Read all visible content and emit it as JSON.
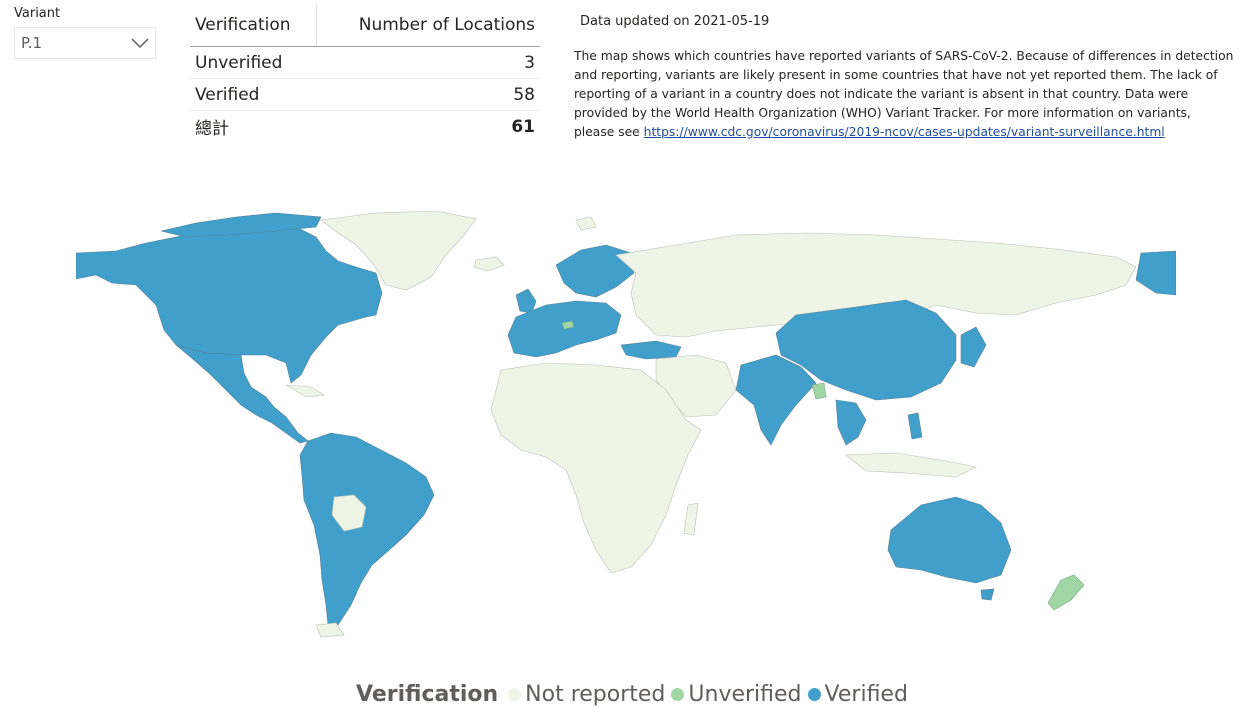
{
  "slicer": {
    "title": "Variant",
    "selected": "P.1"
  },
  "table": {
    "headers": [
      "Verification",
      "Number of Locations"
    ],
    "rows": [
      {
        "label": "Unverified",
        "value": "3"
      },
      {
        "label": "Verified",
        "value": "58"
      }
    ],
    "total": {
      "label": "總計",
      "value": "61"
    }
  },
  "info": {
    "updated": "Data updated on 2021-05-19",
    "body": "The map shows which countries have reported variants of SARS-CoV-2. Because of differences in detection and reporting, variants are likely present in some countries that have not yet reported them. The lack of reporting of a variant in a country does not indicate the variant is absent in that country. Data were provided by the World Health Organization (WHO) Variant Tracker. For more information on variants, please see",
    "link": "https://www.cdc.gov/coronavirus/2019-ncov/cases-updates/variant-surveillance.html"
  },
  "legend": {
    "title": "Verification",
    "items": [
      {
        "label": "Not reported",
        "color": "#eef5e6"
      },
      {
        "label": "Unverified",
        "color": "#9fd6a3"
      },
      {
        "label": "Verified",
        "color": "#41a0cb"
      }
    ]
  },
  "map": {
    "icons": [
      "world-map"
    ],
    "colors": {
      "verified": "#41a0cb",
      "unverified": "#9fd6a3",
      "not_reported": "#eef5e6"
    }
  }
}
